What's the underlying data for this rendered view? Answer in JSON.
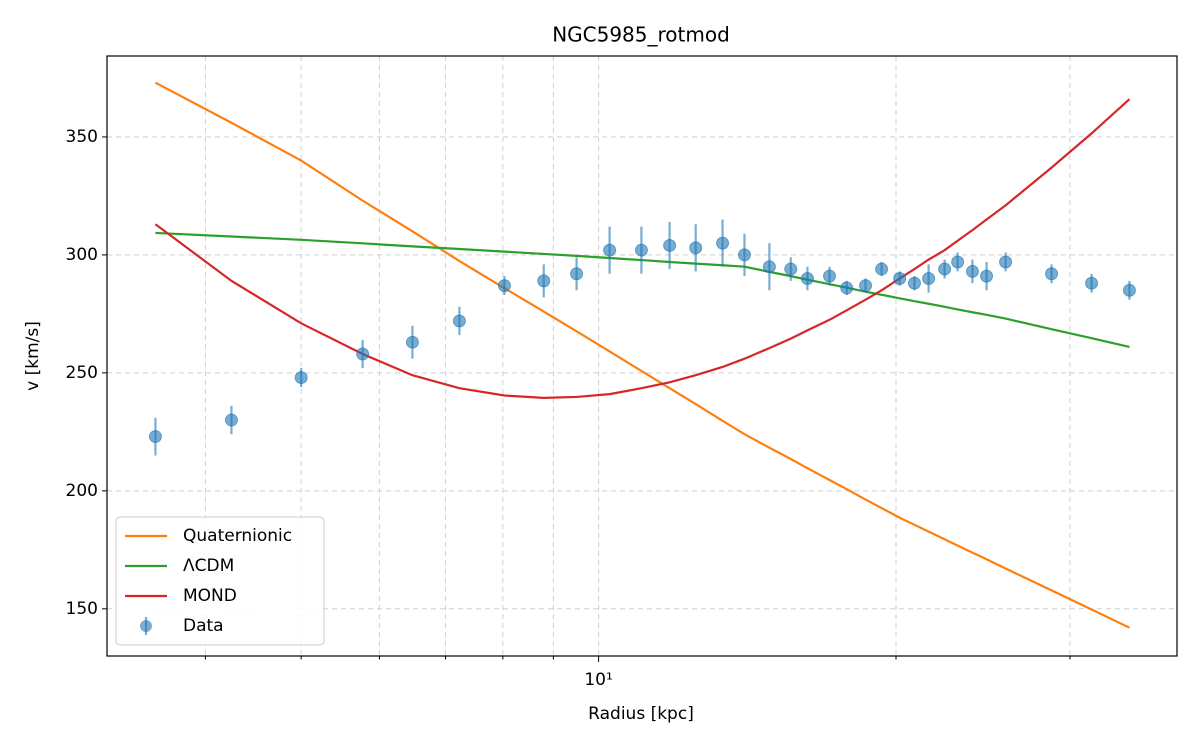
{
  "chart_data": {
    "type": "line",
    "title": "NGC5985_rotmod",
    "x_label": "Radius [kpc]",
    "y_label": "v [km/s]",
    "x": [
      3.56,
      4.25,
      5.0,
      5.77,
      6.48,
      7.23,
      8.03,
      8.8,
      9.5,
      10.26,
      11.05,
      11.8,
      12.54,
      13.35,
      14.05,
      14.89,
      15.65,
      16.27,
      17.13,
      17.83,
      18.63,
      19.34,
      20.17,
      20.88,
      21.58,
      22.4,
      23.09,
      23.9,
      24.7,
      25.82,
      28.74,
      31.55,
      34.46
    ],
    "series": [
      {
        "name": "Quaternionic",
        "type": "line",
        "color": "#ff7f0e",
        "values": [
          373,
          356,
          340,
          323,
          310,
          297.4,
          285.9,
          276,
          267.6,
          259.1,
          250.8,
          243.5,
          236.8,
          229.7,
          224,
          218.3,
          213.5,
          209.6,
          204.6,
          200.7,
          196.3,
          192.7,
          188.6,
          185.6,
          182.7,
          179.5,
          176.8,
          173.8,
          171,
          167.1,
          157.8,
          149.7,
          142
        ]
      },
      {
        "name": "ΛCDM",
        "type": "line",
        "color": "#2ca02c",
        "values": [
          309.3,
          307.8,
          306.4,
          304.9,
          303.6,
          302.5,
          301.4,
          300.4,
          299.6,
          298.7,
          297.8,
          297,
          296.3,
          295.6,
          295,
          292.8,
          291,
          289.5,
          287.6,
          286.1,
          284.4,
          283.1,
          281.6,
          280.4,
          279.3,
          278,
          276.9,
          275.7,
          274.6,
          273,
          268.5,
          264.7,
          261
        ]
      },
      {
        "name": "MOND",
        "type": "line",
        "color": "#d62728",
        "values": [
          313,
          289,
          271,
          258,
          249,
          243.5,
          240.4,
          239.4,
          239.8,
          241,
          243.5,
          246,
          249,
          252.5,
          256,
          260.5,
          264.5,
          268,
          272.5,
          276.5,
          281,
          285,
          290,
          294,
          298,
          302,
          306,
          310.5,
          315,
          321,
          337,
          351.5,
          366
        ]
      },
      {
        "name": "Data",
        "type": "errorbar",
        "color": "#1f77b4",
        "values": [
          223,
          230,
          248,
          258,
          263,
          272,
          287,
          289,
          292,
          302,
          302,
          304,
          303,
          305,
          300,
          295,
          294,
          290,
          291,
          286,
          287,
          294,
          290,
          288,
          290,
          294,
          297,
          293,
          291,
          297,
          292,
          288,
          285
        ],
        "errors": [
          8,
          6,
          4,
          6,
          7,
          6,
          4,
          7,
          7,
          10,
          10,
          10,
          10,
          10,
          9,
          10,
          5,
          5,
          4,
          3,
          3,
          3,
          3,
          3,
          6,
          4,
          4,
          5,
          6,
          4,
          4,
          4,
          4
        ]
      }
    ],
    "xscale": "log",
    "xlim": [
      3.18,
      38.5
    ],
    "xticks": [
      {
        "value": 10,
        "label": "10¹"
      }
    ],
    "xminorticks": [
      4,
      5,
      6,
      7,
      8,
      9,
      20,
      30
    ],
    "ylim": [
      130,
      384.3
    ],
    "yticks": [
      150,
      200,
      250,
      300,
      350
    ],
    "grid": true,
    "legend": "lower left"
  }
}
